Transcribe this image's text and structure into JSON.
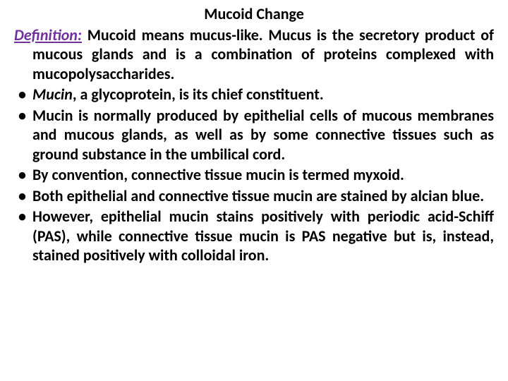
{
  "colors": {
    "background": "#ffffff",
    "text": "#000000",
    "accent": "#7030a0"
  },
  "typography": {
    "font_family": "Calibri, Arial, sans-serif",
    "title_fontsize_pt": 18,
    "body_fontsize_pt": 18,
    "line_height": 1.25,
    "weight": 700,
    "align": "justify"
  },
  "slide": {
    "title": "Mucoid Change",
    "definition": {
      "label": "Definition:",
      "pre": " Mucoid means mucus-like. Mucus is the secretory product of mucous glands and is a combination of proteins complexed with mucopolysaccharides."
    },
    "bullets": [
      {
        "italic_lead": "Mucin",
        "rest": ", a glycoprotein, is its chief constituent."
      },
      {
        "text": "Mucin is normally produced by epithelial cells of mucous membranes and mucous glands, as well as by some connective tissues such as ground substance in the umbilical cord."
      },
      {
        "text": "By convention, connective tissue mucin is termed myxoid."
      },
      {
        "text": "Both epithelial and connective tissue mucin are stained by alcian blue."
      },
      {
        "text": "However, epithelial mucin stains positively with periodic acid-Schiff (PAS), while connective tissue mucin is PAS negative but is, instead, stained positively with colloidal iron."
      }
    ]
  }
}
